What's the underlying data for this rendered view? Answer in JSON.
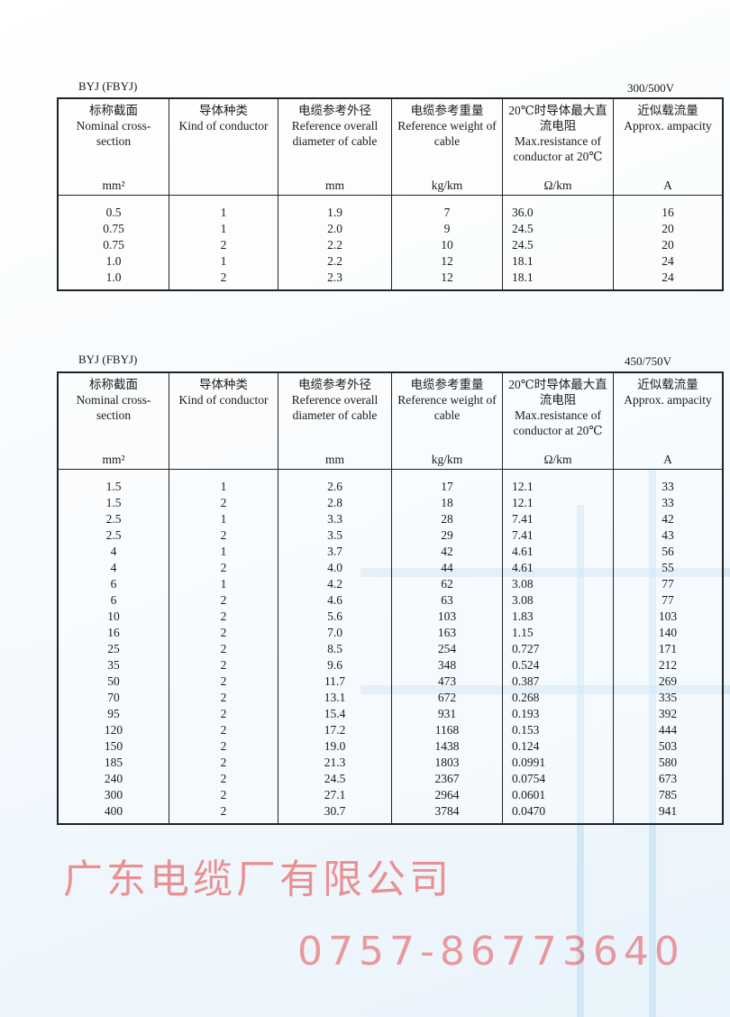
{
  "watermark": {
    "company": "广东电缆厂有限公司",
    "phone": "0757-86773640"
  },
  "tables": [
    {
      "model": "BYJ (FBYJ)",
      "voltage": "300/500V",
      "headers": [
        {
          "zh": "标称截面",
          "en": "Nominal cross-section",
          "unit": "mm²"
        },
        {
          "zh": "导体种类",
          "en": "Kind of conductor",
          "unit": ""
        },
        {
          "zh": "电缆参考外径",
          "en": "Reference overall diameter of cable",
          "unit": "mm"
        },
        {
          "zh": "电缆参考重量",
          "en": "Reference weight of cable",
          "unit": "kg/km"
        },
        {
          "zh": "20℃时导体最大直流电阻",
          "en": "Max.resistance of conductor at 20℃",
          "unit": "Ω/km"
        },
        {
          "zh": "近似载流量",
          "en": "Approx. ampacity",
          "unit": "A"
        }
      ],
      "rows": [
        [
          "0.5",
          "1",
          "1.9",
          "7",
          "36.0",
          "16"
        ],
        [
          "0.75",
          "1",
          "2.0",
          "9",
          "24.5",
          "20"
        ],
        [
          "0.75",
          "2",
          "2.2",
          "10",
          "24.5",
          "20"
        ],
        [
          "1.0",
          "1",
          "2.2",
          "12",
          "18.1",
          "24"
        ],
        [
          "1.0",
          "2",
          "2.3",
          "12",
          "18.1",
          "24"
        ]
      ]
    },
    {
      "model": "BYJ (FBYJ)",
      "voltage": "450/750V",
      "headers": [
        {
          "zh": "标称截面",
          "en": "Nominal cross-section",
          "unit": "mm²"
        },
        {
          "zh": "导体种类",
          "en": "Kind of conductor",
          "unit": ""
        },
        {
          "zh": "电缆参考外径",
          "en": "Reference overall diameter of cable",
          "unit": "mm"
        },
        {
          "zh": "电缆参考重量",
          "en": "Reference weight of cable",
          "unit": "kg/km"
        },
        {
          "zh": "20℃时导体最大直流电阻",
          "en": "Max.resistance of conductor at 20℃",
          "unit": "Ω/km"
        },
        {
          "zh": "近似载流量",
          "en": "Approx. ampacity",
          "unit": "A"
        }
      ],
      "rows": [
        [
          "1.5",
          "1",
          "2.6",
          "17",
          "12.1",
          "33"
        ],
        [
          "1.5",
          "2",
          "2.8",
          "18",
          "12.1",
          "33"
        ],
        [
          "2.5",
          "1",
          "3.3",
          "28",
          "7.41",
          "42"
        ],
        [
          "2.5",
          "2",
          "3.5",
          "29",
          "7.41",
          "43"
        ],
        [
          "4",
          "1",
          "3.7",
          "42",
          "4.61",
          "56"
        ],
        [
          "4",
          "2",
          "4.0",
          "44",
          "4.61",
          "55"
        ],
        [
          "6",
          "1",
          "4.2",
          "62",
          "3.08",
          "77"
        ],
        [
          "6",
          "2",
          "4.6",
          "63",
          "3.08",
          "77"
        ],
        [
          "10",
          "2",
          "5.6",
          "103",
          "1.83",
          "103"
        ],
        [
          "16",
          "2",
          "7.0",
          "163",
          "1.15",
          "140"
        ],
        [
          "25",
          "2",
          "8.5",
          "254",
          "0.727",
          "171"
        ],
        [
          "35",
          "2",
          "9.6",
          "348",
          "0.524",
          "212"
        ],
        [
          "50",
          "2",
          "11.7",
          "473",
          "0.387",
          "269"
        ],
        [
          "70",
          "2",
          "13.1",
          "672",
          "0.268",
          "335"
        ],
        [
          "95",
          "2",
          "15.4",
          "931",
          "0.193",
          "392"
        ],
        [
          "120",
          "2",
          "17.2",
          "1168",
          "0.153",
          "444"
        ],
        [
          "150",
          "2",
          "19.0",
          "1438",
          "0.124",
          "503"
        ],
        [
          "185",
          "2",
          "21.3",
          "1803",
          "0.0991",
          "580"
        ],
        [
          "240",
          "2",
          "24.5",
          "2367",
          "0.0754",
          "673"
        ],
        [
          "300",
          "2",
          "27.1",
          "2964",
          "0.0601",
          "785"
        ],
        [
          "400",
          "2",
          "30.7",
          "3784",
          "0.0470",
          "941"
        ]
      ]
    }
  ]
}
